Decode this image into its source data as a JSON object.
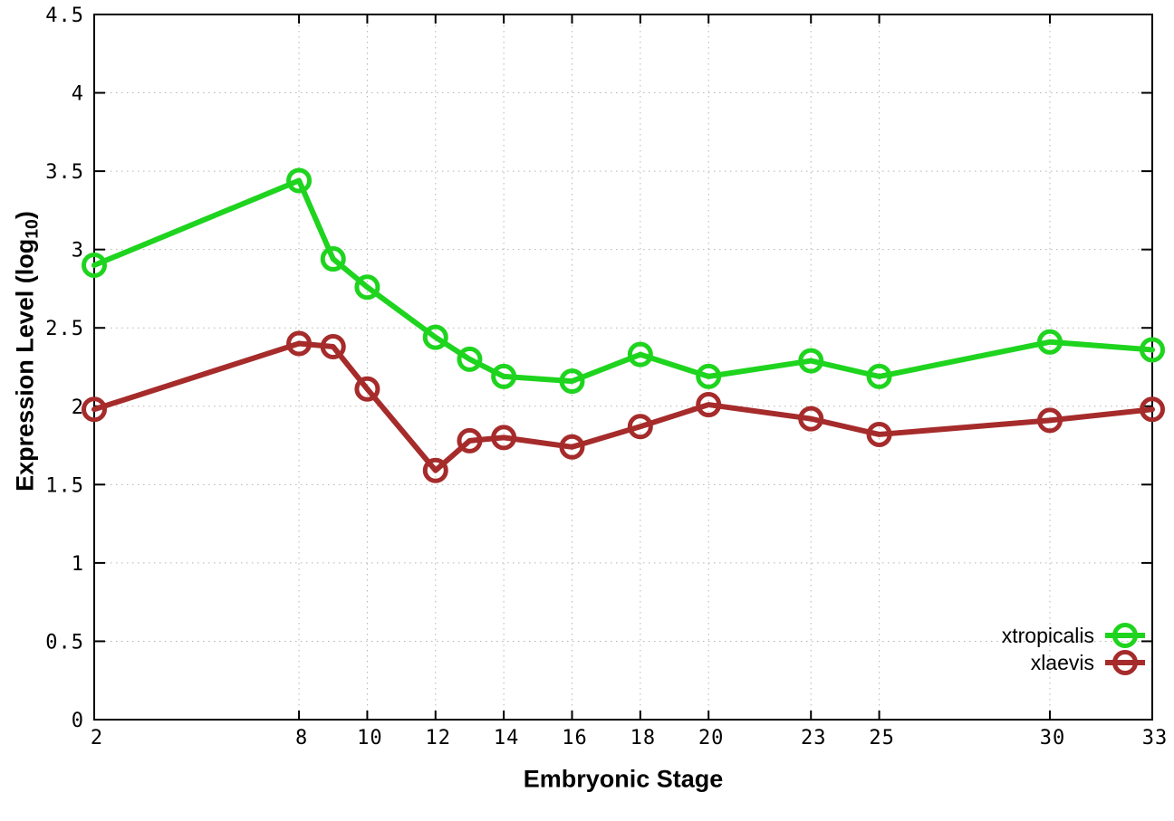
{
  "chart_data": {
    "type": "line",
    "title": "",
    "xlabel": "Embryonic Stage",
    "ylabel": "Expression Level (log10)",
    "ylabel_parts": {
      "main": "Expression Level (log",
      "sub": "10",
      "end": ")"
    },
    "xlim": [
      2,
      33
    ],
    "ylim": [
      0,
      4.5
    ],
    "grid": "dotted",
    "legend_position": "inside-bottom-right",
    "x": [
      2,
      8,
      9,
      10,
      12,
      13,
      14,
      16,
      18,
      20,
      23,
      25,
      30,
      33
    ],
    "xticks": [
      {
        "label": "2",
        "value": 2
      },
      {
        "label": "8",
        "value": 8
      },
      {
        "label": "10",
        "value": 10
      },
      {
        "label": "12",
        "value": 12
      },
      {
        "label": "14",
        "value": 14
      },
      {
        "label": "16",
        "value": 16
      },
      {
        "label": "18",
        "value": 18
      },
      {
        "label": "20",
        "value": 20
      },
      {
        "label": "23",
        "value": 23
      },
      {
        "label": "25",
        "value": 25
      },
      {
        "label": "30",
        "value": 30
      },
      {
        "label": "33",
        "value": 33
      }
    ],
    "yticks": [
      {
        "label": "0",
        "value": 0
      },
      {
        "label": "0.5",
        "value": 0.5
      },
      {
        "label": "1",
        "value": 1
      },
      {
        "label": "1.5",
        "value": 1.5
      },
      {
        "label": "2",
        "value": 2
      },
      {
        "label": "2.5",
        "value": 2.5
      },
      {
        "label": "3",
        "value": 3
      },
      {
        "label": "3.5",
        "value": 3.5
      },
      {
        "label": "4",
        "value": 4
      },
      {
        "label": "4.5",
        "value": 4.5
      }
    ],
    "series": [
      {
        "name": "xtropicalis",
        "color": "#1ed41e",
        "marker": "open-circle",
        "values": [
          2.9,
          3.44,
          2.94,
          2.76,
          2.44,
          2.3,
          2.19,
          2.16,
          2.33,
          2.19,
          2.29,
          2.19,
          2.41,
          2.36
        ]
      },
      {
        "name": "xlaevis",
        "color": "#a62b2b",
        "marker": "open-circle",
        "values": [
          1.98,
          2.4,
          2.38,
          2.11,
          1.59,
          1.78,
          1.8,
          1.74,
          1.87,
          2.01,
          1.92,
          1.82,
          1.91,
          1.98
        ]
      }
    ],
    "colors": {
      "grid": "#b4b4b4",
      "axis": "#000000",
      "background": "#ffffff",
      "text": "#000000"
    }
  }
}
